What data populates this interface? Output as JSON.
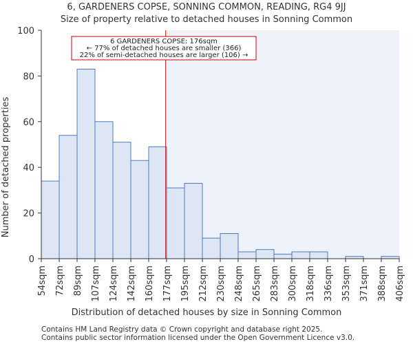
{
  "chart_data": {
    "type": "bar",
    "title_line1": "6, GARDENERS COPSE, SONNING COMMON, READING, RG4 9JJ",
    "title_line2": "Size of property relative to detached houses in Sonning Common",
    "xlabel": "Distribution of detached houses by size in Sonning Common",
    "ylabel": "Number of detached properties",
    "ylim": [
      0,
      100
    ],
    "yticks": [
      0,
      20,
      40,
      60,
      80,
      100
    ],
    "xticks": [
      "54sqm",
      "72sqm",
      "89sqm",
      "107sqm",
      "124sqm",
      "142sqm",
      "160sqm",
      "177sqm",
      "195sqm",
      "212sqm",
      "230sqm",
      "248sqm",
      "265sqm",
      "283sqm",
      "300sqm",
      "318sqm",
      "336sqm",
      "353sqm",
      "371sqm",
      "388sqm",
      "406sqm"
    ],
    "values": [
      34,
      54,
      83,
      60,
      51,
      43,
      49,
      31,
      33,
      9,
      11,
      3,
      4,
      2,
      3,
      3,
      0,
      1,
      0,
      1
    ],
    "property_marker": {
      "value_sqm": 176,
      "position_bins": 6.95
    },
    "annotation": {
      "line1": "6 GARDENERS COPSE: 176sqm",
      "line2": "← 77% of detached houses are smaller (366)",
      "line3": "22% of semi-detached houses are larger (106) →"
    },
    "colors": {
      "bar_fill": "#dce6f5",
      "bar_stroke": "#4f79bd",
      "highlight_bg": "#eef2fb",
      "marker": "#cc0000",
      "axis": "#333333"
    }
  },
  "footer": {
    "line1": "Contains HM Land Registry data © Crown copyright and database right 2025.",
    "line2": "Contains public sector information licensed under the Open Government Licence v3.0."
  }
}
